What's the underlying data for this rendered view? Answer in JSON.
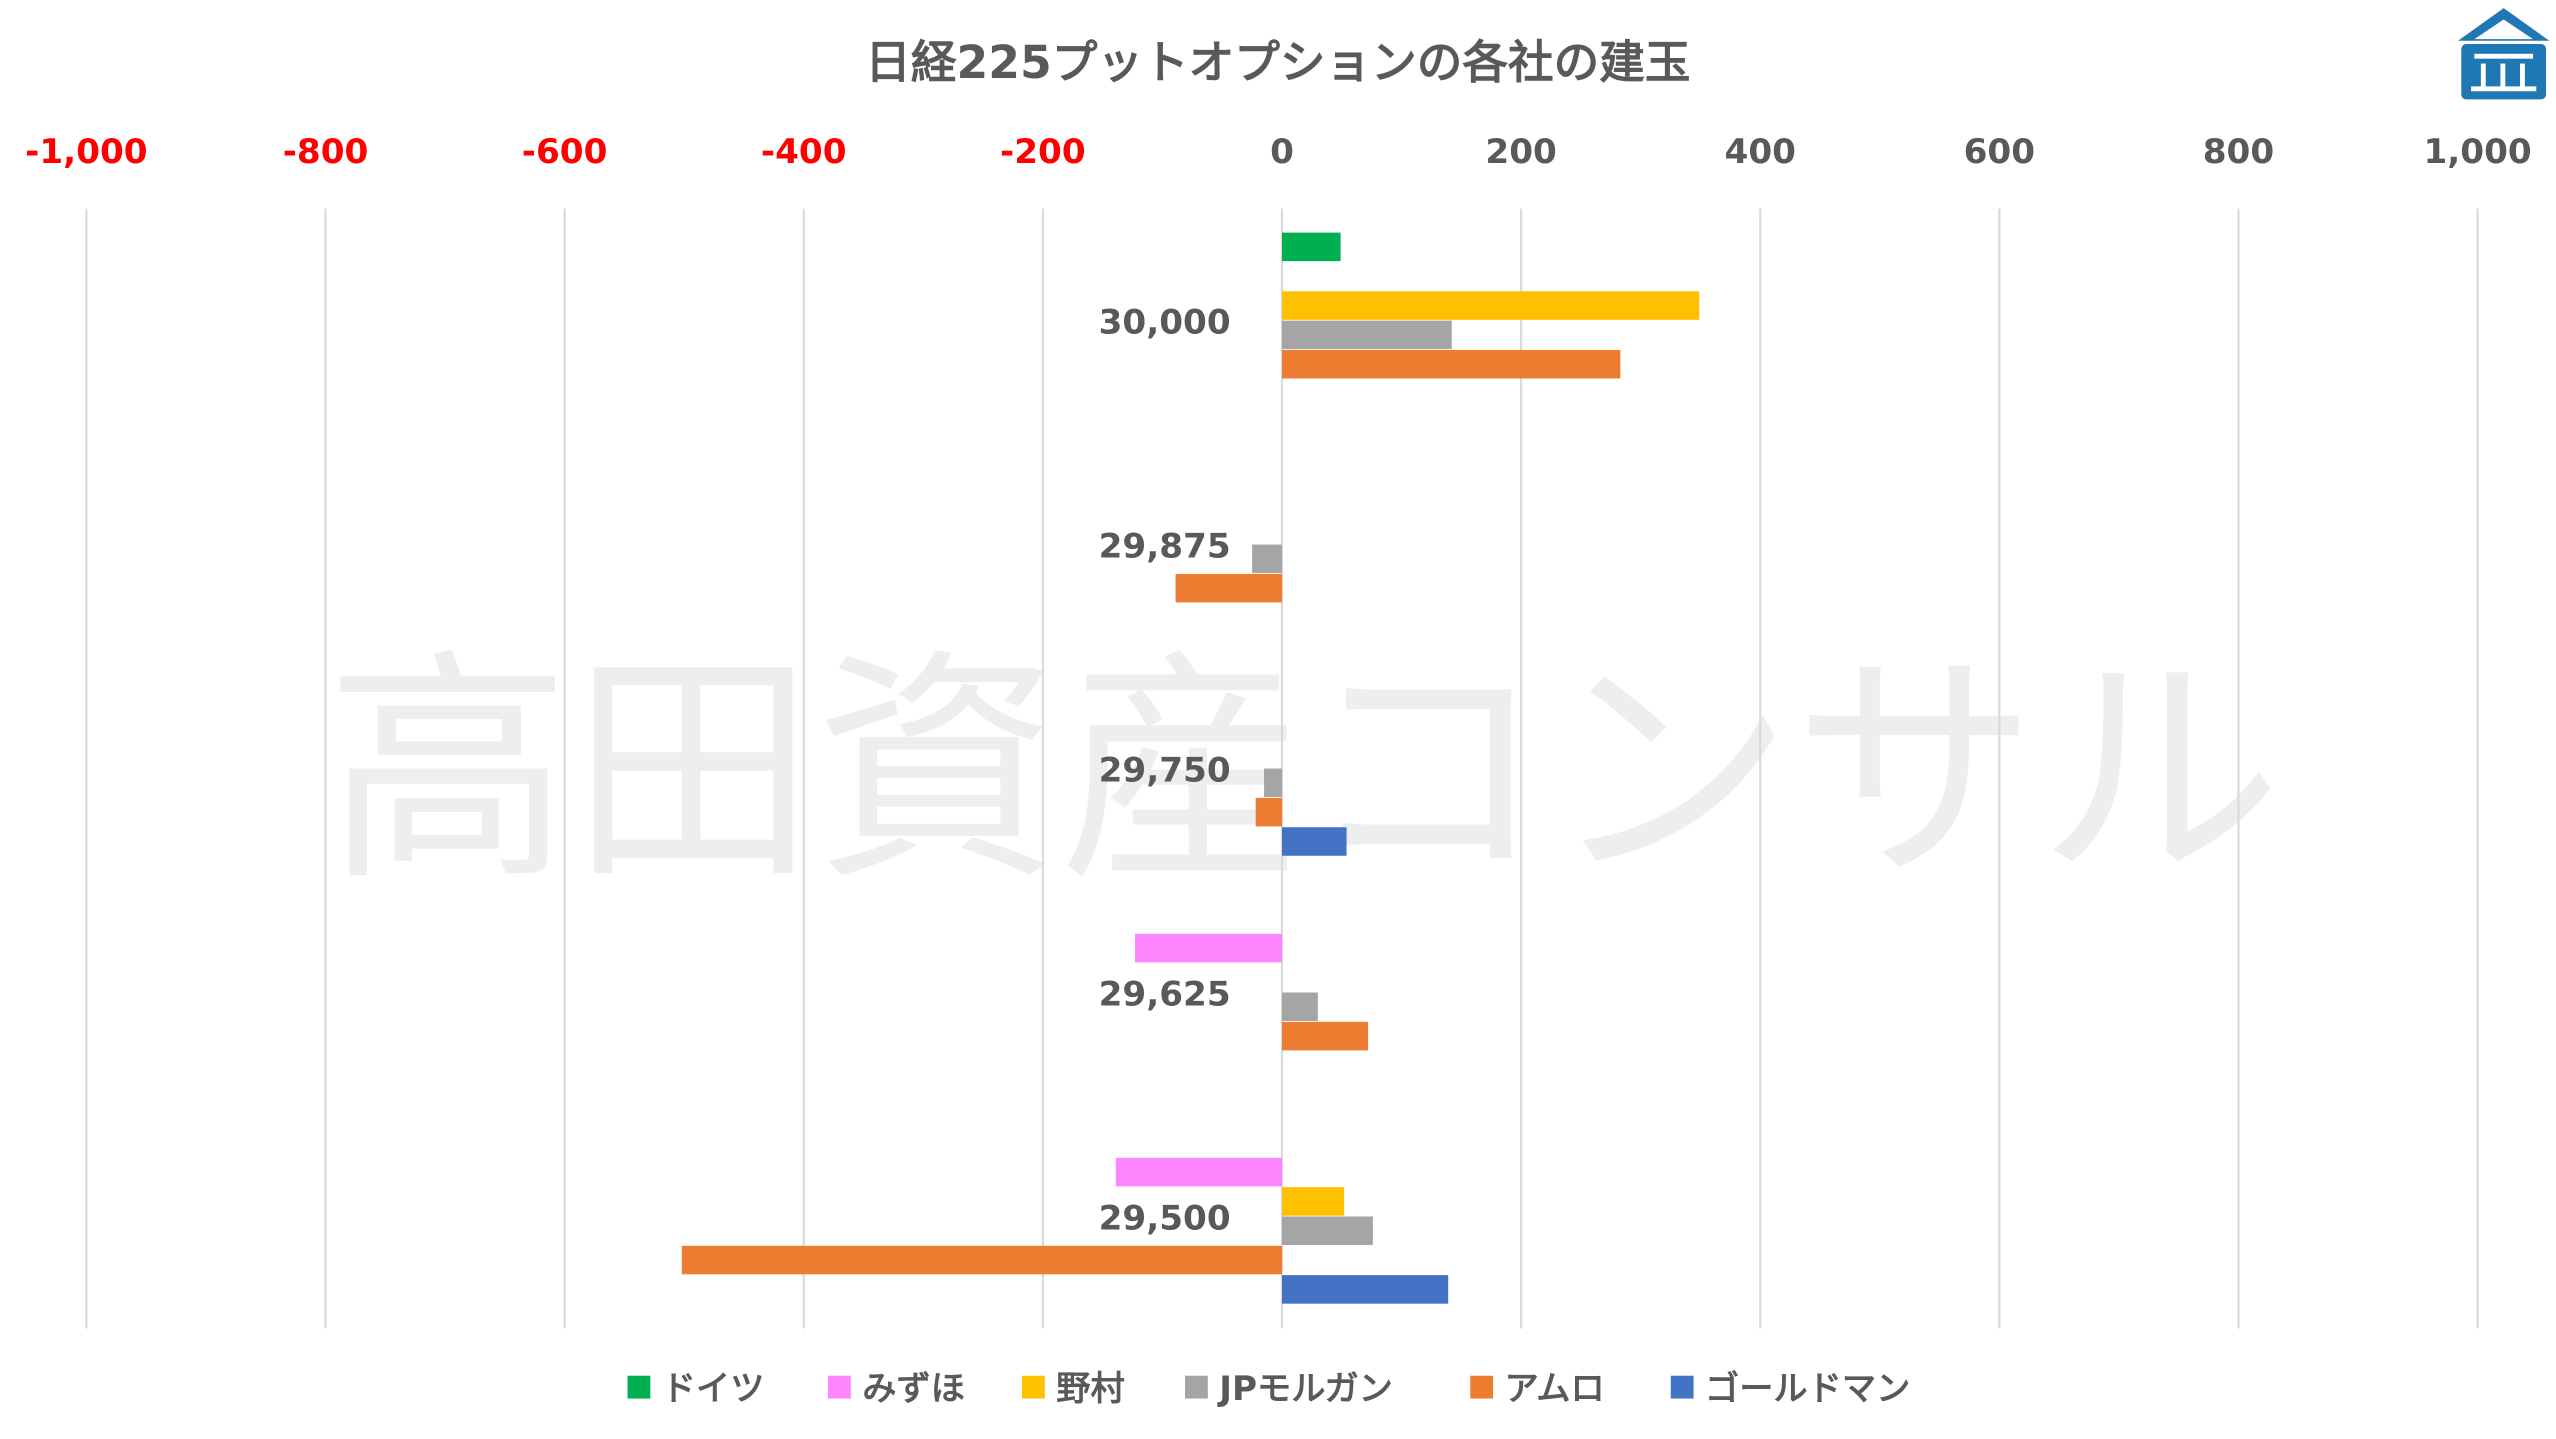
{
  "watermark": "高田資産コンサル",
  "chart_data": {
    "type": "bar",
    "orientation": "horizontal",
    "title": "日経225プットオプションの各社の建玉",
    "xlim": [
      -1000,
      1000
    ],
    "x_ticks": [
      "-1,000",
      "-800",
      "-600",
      "-400",
      "-200",
      "0",
      "200",
      "400",
      "600",
      "800",
      "1,000"
    ],
    "x_tick_values": [
      -1000,
      -800,
      -600,
      -400,
      -200,
      0,
      200,
      400,
      600,
      800,
      1000
    ],
    "negative_tick_color": "#ff0000",
    "positive_tick_color": "#595959",
    "grid": "vertical",
    "legend_position": "bottom",
    "categories": [
      "30,000",
      "29,875",
      "29,750",
      "29,625",
      "29,500"
    ],
    "series": [
      {
        "name": "ドイツ",
        "color": "#00b050",
        "values": [
          49,
          0,
          0,
          0,
          0
        ]
      },
      {
        "name": "みずほ",
        "color": "#ff85ff",
        "values": [
          0,
          0,
          0,
          -123,
          -139
        ]
      },
      {
        "name": "野村",
        "color": "#ffc000",
        "values": [
          349,
          0,
          0,
          0,
          52
        ]
      },
      {
        "name": "JPモルガン",
        "color": "#a5a5a5",
        "values": [
          142,
          -25,
          -15,
          30,
          76
        ]
      },
      {
        "name": "アムロ",
        "color": "#ed7d31",
        "values": [
          283,
          -89,
          -22,
          72,
          -502
        ]
      },
      {
        "name": "ゴールドマン",
        "color": "#4472c4",
        "values": [
          0,
          0,
          54,
          0,
          139
        ]
      }
    ]
  }
}
